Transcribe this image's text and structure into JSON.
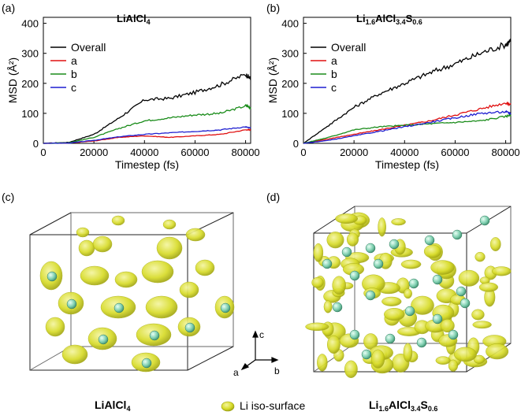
{
  "panels": {
    "a": {
      "label": "(a)",
      "title_main": "LiAlCl",
      "title_sub": "4"
    },
    "b": {
      "label": "(b)",
      "title_parts": [
        {
          "t": "Li",
          "s": "1.6"
        },
        {
          "t": "AlCl",
          "s": "3.4"
        },
        {
          "t": "S",
          "s": "0.6"
        }
      ]
    },
    "c": {
      "label": "(c)",
      "caption_main": "LiAlCl",
      "caption_sub": "4"
    },
    "d": {
      "label": "(d)",
      "caption_parts": [
        {
          "t": "Li",
          "s": "1.6"
        },
        {
          "t": "AlCl",
          "s": "3.4"
        },
        {
          "t": "S",
          "s": "0.6"
        }
      ]
    }
  },
  "legend_center": {
    "text": "Li iso-surface"
  },
  "axes_triad": {
    "c": "c",
    "b": "b",
    "a": "a"
  },
  "colors": {
    "overall": "#000000",
    "a": "#e01010",
    "b": "#1a8c1a",
    "c": "#1f1fd0",
    "iso": "#d8dc2a",
    "li": "#7fcfb0"
  },
  "chart_data": [
    {
      "type": "line",
      "panel": "a",
      "xlabel": "Timestep (fs)",
      "ylabel": "MSD (Å²)",
      "xlim": [
        0,
        82000
      ],
      "ylim": [
        0,
        420
      ],
      "xticks": [
        0,
        20000,
        40000,
        60000,
        80000
      ],
      "yticks": [
        0,
        100,
        200,
        300,
        400
      ],
      "legend": [
        "Overall",
        "a",
        "b",
        "c"
      ],
      "x": [
        0,
        10000,
        20000,
        30000,
        40000,
        50000,
        60000,
        70000,
        80000,
        82000
      ],
      "series": [
        {
          "name": "Overall",
          "values": [
            0,
            3,
            30,
            85,
            145,
            150,
            170,
            195,
            230,
            215
          ]
        },
        {
          "name": "a",
          "values": [
            0,
            1,
            8,
            20,
            25,
            20,
            25,
            30,
            45,
            45
          ]
        },
        {
          "name": "b",
          "values": [
            0,
            2,
            20,
            50,
            75,
            85,
            95,
            100,
            125,
            120
          ]
        },
        {
          "name": "c",
          "values": [
            0,
            1,
            10,
            22,
            30,
            35,
            40,
            45,
            55,
            50
          ]
        }
      ]
    },
    {
      "type": "line",
      "panel": "b",
      "xlabel": "Timestep (fs)",
      "ylabel": "MSD (Å²)",
      "xlim": [
        0,
        82000
      ],
      "ylim": [
        0,
        420
      ],
      "xticks": [
        0,
        20000,
        40000,
        60000,
        80000
      ],
      "yticks": [
        0,
        100,
        200,
        300,
        400
      ],
      "legend": [
        "Overall",
        "a",
        "b",
        "c"
      ],
      "x": [
        0,
        10000,
        20000,
        30000,
        40000,
        50000,
        60000,
        70000,
        80000,
        82000
      ],
      "series": [
        {
          "name": "Overall",
          "values": [
            0,
            60,
            120,
            165,
            200,
            235,
            265,
            300,
            330,
            340
          ]
        },
        {
          "name": "a",
          "values": [
            0,
            15,
            30,
            45,
            60,
            75,
            95,
            115,
            135,
            130
          ]
        },
        {
          "name": "b",
          "values": [
            0,
            20,
            45,
            55,
            60,
            65,
            70,
            75,
            90,
            95
          ]
        },
        {
          "name": "c",
          "values": [
            0,
            10,
            25,
            40,
            55,
            70,
            85,
            100,
            105,
            100
          ]
        }
      ]
    }
  ]
}
